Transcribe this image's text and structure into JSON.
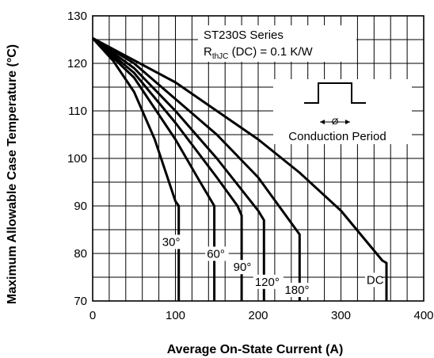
{
  "chart_data": {
    "type": "line",
    "xlabel": "Average On-State Current (A)",
    "ylabel": "Maximum Allowable Case Temperature (°C)",
    "xlim": [
      0,
      400
    ],
    "ylim": [
      70,
      130
    ],
    "x_ticks": [
      "0",
      "100",
      "200",
      "300",
      "400"
    ],
    "y_ticks": [
      "70",
      "80",
      "90",
      "100",
      "110",
      "120",
      "130"
    ],
    "grid": true,
    "series_title": "ST230S Series",
    "rth_label": {
      "main": "R",
      "sub": "thJC",
      "rest": " (DC) = 0.1 K/W"
    },
    "inset_label": "Conduction Period",
    "inset_symbol": "Ø",
    "series": [
      {
        "name": "30°",
        "points": [
          [
            0,
            125.3
          ],
          [
            25,
            120.5
          ],
          [
            50,
            114
          ],
          [
            75,
            104
          ],
          [
            100,
            91
          ],
          [
            104,
            90
          ],
          [
            104,
            70
          ]
        ]
      },
      {
        "name": "60°",
        "points": [
          [
            0,
            125.3
          ],
          [
            50,
            117
          ],
          [
            100,
            104
          ],
          [
            130,
            95
          ],
          [
            147,
            90
          ],
          [
            147,
            70
          ]
        ]
      },
      {
        "name": "90°",
        "points": [
          [
            0,
            125.3
          ],
          [
            50,
            118
          ],
          [
            100,
            107.5
          ],
          [
            150,
            96
          ],
          [
            175,
            90
          ],
          [
            180,
            88
          ],
          [
            180,
            70
          ]
        ]
      },
      {
        "name": "120°",
        "points": [
          [
            0,
            125.3
          ],
          [
            50,
            119
          ],
          [
            100,
            110
          ],
          [
            150,
            100
          ],
          [
            200,
            89
          ],
          [
            207,
            87
          ],
          [
            207,
            70
          ]
        ]
      },
      {
        "name": "180°",
        "points": [
          [
            0,
            125.3
          ],
          [
            50,
            120
          ],
          [
            100,
            112.5
          ],
          [
            150,
            105
          ],
          [
            200,
            96
          ],
          [
            250,
            84
          ],
          [
            250,
            70
          ]
        ]
      },
      {
        "name": "DC",
        "points": [
          [
            0,
            125.3
          ],
          [
            100,
            116
          ],
          [
            200,
            104
          ],
          [
            250,
            97
          ],
          [
            300,
            89
          ],
          [
            350,
            78.5
          ],
          [
            355,
            78
          ],
          [
            355,
            70
          ]
        ]
      }
    ]
  }
}
